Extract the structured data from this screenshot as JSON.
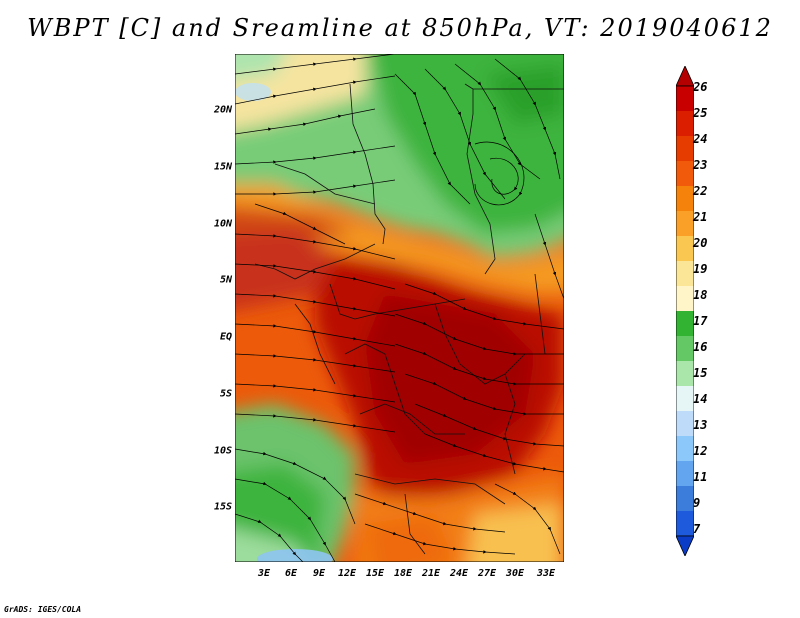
{
  "title": "WBPT [C] and Sreamline at 850hPa, VT: 2019040612",
  "y_axis_labels": [
    "20N",
    "15N",
    "10N",
    "5N",
    "EQ",
    "5S",
    "10S",
    "15S"
  ],
  "x_axis_labels": [
    "3E",
    "6E",
    "9E",
    "12E",
    "15E",
    "18E",
    "21E",
    "24E",
    "27E",
    "30E",
    "33E"
  ],
  "colorbar": {
    "labels": [
      "26",
      "25",
      "24",
      "23",
      "22",
      "21",
      "20",
      "19",
      "18",
      "17",
      "16",
      "15",
      "14",
      "13",
      "12",
      "11",
      "9",
      "7"
    ],
    "colors": [
      "#c80000",
      "#dc1e00",
      "#e63c00",
      "#f05a0a",
      "#f5820a",
      "#faa028",
      "#fac850",
      "#fae696",
      "#fff5c8",
      "#32b432",
      "#64c864",
      "#aae6aa",
      "#e6f5f5",
      "#bedcfa",
      "#8cc8fa",
      "#64a5f0",
      "#3c7ddc",
      "#1e5adc"
    ],
    "top_color": "#b40000",
    "bottom_color": "#0a3cc8"
  },
  "credit": "GrADS: IGES/COLA"
}
